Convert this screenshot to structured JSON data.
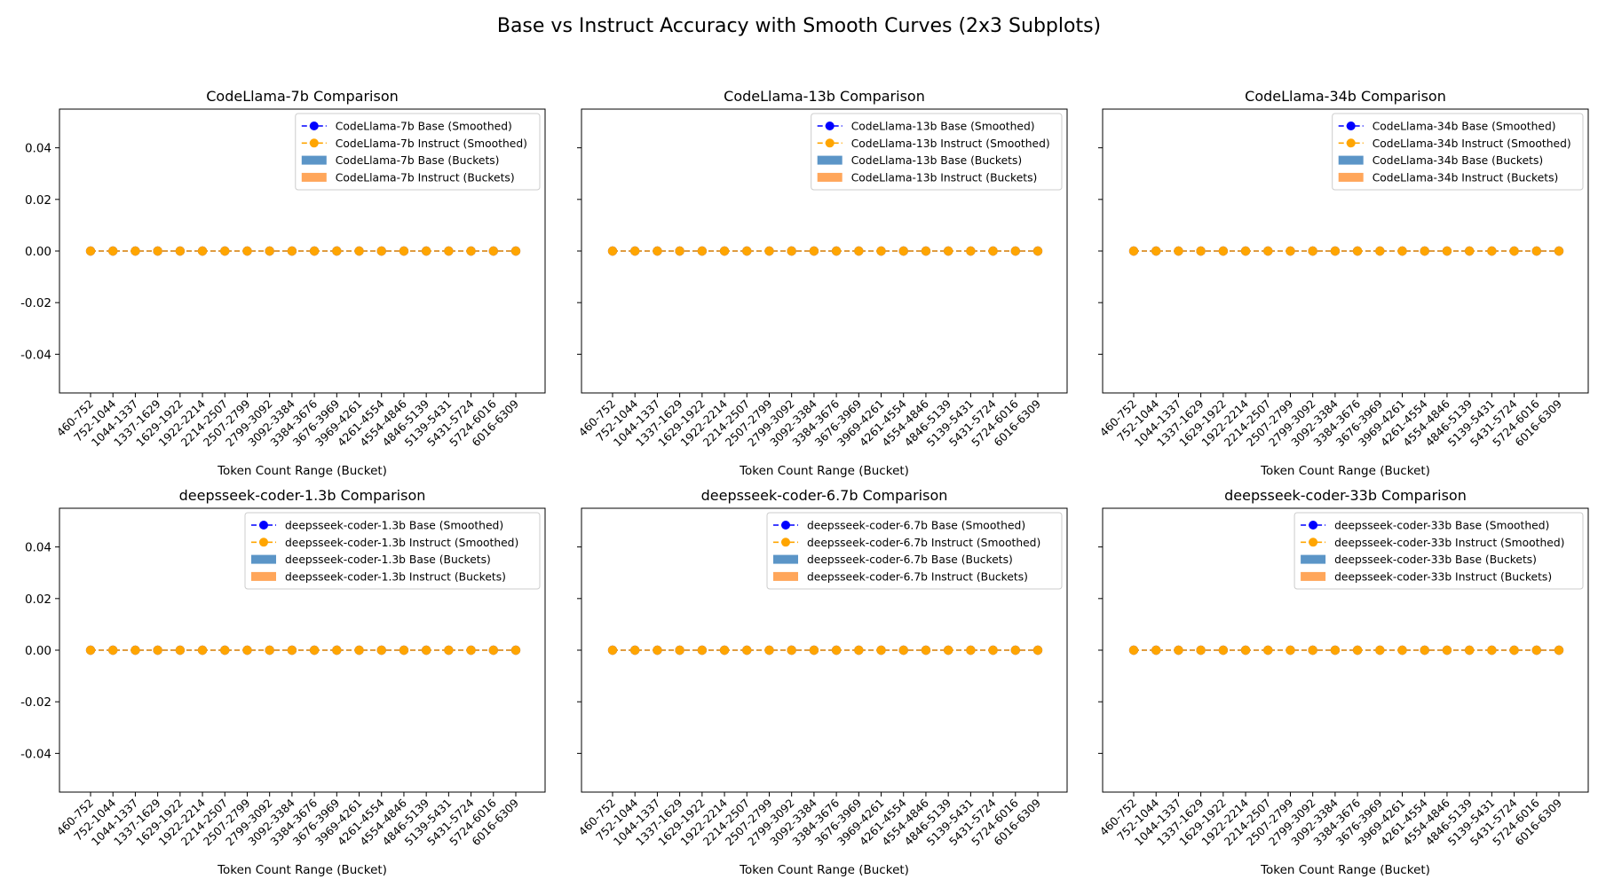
{
  "figure": {
    "title": "Base vs Instruct Accuracy with Smooth Curves (2x3 Subplots)"
  },
  "colors": {
    "base_line": "#0000ff",
    "instruct_line": "#ffa500",
    "base_bar": "#5b95c7",
    "instruct_bar": "#ffa65a"
  },
  "chart_data": [
    {
      "type": "line",
      "title": "CodeLlama-7b Comparison",
      "xlabel": "Token Count Range (Bucket)",
      "ylabel": "",
      "ylim": [
        -0.055,
        0.055
      ],
      "yticks": [
        "0.04",
        "0.02",
        "0.00",
        "-0.02",
        "-0.04"
      ],
      "ytick_values": [
        0.04,
        0.02,
        0.0,
        -0.02,
        -0.04
      ],
      "categories": [
        "460-752",
        "752-1044",
        "1044-1337",
        "1337-1629",
        "1629-1922",
        "1922-2214",
        "2214-2507",
        "2507-2799",
        "2799-3092",
        "3092-3384",
        "3384-3676",
        "3676-3969",
        "3969-4261",
        "4261-4554",
        "4554-4846",
        "4846-5139",
        "5139-5431",
        "5431-5724",
        "5724-6016",
        "6016-6309"
      ],
      "series": [
        {
          "name": "CodeLlama-7b Base (Smoothed)",
          "kind": "line",
          "values": [
            0,
            0,
            0,
            0,
            0,
            0,
            0,
            0,
            0,
            0,
            0,
            0,
            0,
            0,
            0,
            0,
            0,
            0,
            0,
            0
          ]
        },
        {
          "name": "CodeLlama-7b Instruct (Smoothed)",
          "kind": "line",
          "values": [
            0,
            0,
            0,
            0,
            0,
            0,
            0,
            0,
            0,
            0,
            0,
            0,
            0,
            0,
            0,
            0,
            0,
            0,
            0,
            0
          ]
        },
        {
          "name": "CodeLlama-7b Base (Buckets)",
          "kind": "bar",
          "values": [
            0,
            0,
            0,
            0,
            0,
            0,
            0,
            0,
            0,
            0,
            0,
            0,
            0,
            0,
            0,
            0,
            0,
            0,
            0,
            0
          ]
        },
        {
          "name": "CodeLlama-7b Instruct (Buckets)",
          "kind": "bar",
          "values": [
            0,
            0,
            0,
            0,
            0,
            0,
            0,
            0,
            0,
            0,
            0,
            0,
            0,
            0,
            0,
            0,
            0,
            0,
            0,
            0
          ]
        }
      ],
      "legend": "top-right"
    },
    {
      "type": "line",
      "title": "CodeLlama-13b Comparison",
      "xlabel": "Token Count Range (Bucket)",
      "ylabel": "",
      "ylim": [
        -0.055,
        0.055
      ],
      "yticks": [],
      "ytick_values": [
        0.04,
        0.02,
        0.0,
        -0.02,
        -0.04
      ],
      "categories": [
        "460-752",
        "752-1044",
        "1044-1337",
        "1337-1629",
        "1629-1922",
        "1922-2214",
        "2214-2507",
        "2507-2799",
        "2799-3092",
        "3092-3384",
        "3384-3676",
        "3676-3969",
        "3969-4261",
        "4261-4554",
        "4554-4846",
        "4846-5139",
        "5139-5431",
        "5431-5724",
        "5724-6016",
        "6016-6309"
      ],
      "series": [
        {
          "name": "CodeLlama-13b Base (Smoothed)",
          "kind": "line",
          "values": [
            0,
            0,
            0,
            0,
            0,
            0,
            0,
            0,
            0,
            0,
            0,
            0,
            0,
            0,
            0,
            0,
            0,
            0,
            0,
            0
          ]
        },
        {
          "name": "CodeLlama-13b Instruct (Smoothed)",
          "kind": "line",
          "values": [
            0,
            0,
            0,
            0,
            0,
            0,
            0,
            0,
            0,
            0,
            0,
            0,
            0,
            0,
            0,
            0,
            0,
            0,
            0,
            0
          ]
        },
        {
          "name": "CodeLlama-13b Base (Buckets)",
          "kind": "bar",
          "values": [
            0,
            0,
            0,
            0,
            0,
            0,
            0,
            0,
            0,
            0,
            0,
            0,
            0,
            0,
            0,
            0,
            0,
            0,
            0,
            0
          ]
        },
        {
          "name": "CodeLlama-13b Instruct (Buckets)",
          "kind": "bar",
          "values": [
            0,
            0,
            0,
            0,
            0,
            0,
            0,
            0,
            0,
            0,
            0,
            0,
            0,
            0,
            0,
            0,
            0,
            0,
            0,
            0
          ]
        }
      ],
      "legend": "top-right"
    },
    {
      "type": "line",
      "title": "CodeLlama-34b Comparison",
      "xlabel": "Token Count Range (Bucket)",
      "ylabel": "",
      "ylim": [
        -0.055,
        0.055
      ],
      "yticks": [],
      "ytick_values": [
        0.04,
        0.02,
        0.0,
        -0.02,
        -0.04
      ],
      "categories": [
        "460-752",
        "752-1044",
        "1044-1337",
        "1337-1629",
        "1629-1922",
        "1922-2214",
        "2214-2507",
        "2507-2799",
        "2799-3092",
        "3092-3384",
        "3384-3676",
        "3676-3969",
        "3969-4261",
        "4261-4554",
        "4554-4846",
        "4846-5139",
        "5139-5431",
        "5431-5724",
        "5724-6016",
        "6016-6309"
      ],
      "series": [
        {
          "name": "CodeLlama-34b Base (Smoothed)",
          "kind": "line",
          "values": [
            0,
            0,
            0,
            0,
            0,
            0,
            0,
            0,
            0,
            0,
            0,
            0,
            0,
            0,
            0,
            0,
            0,
            0,
            0,
            0
          ]
        },
        {
          "name": "CodeLlama-34b Instruct (Smoothed)",
          "kind": "line",
          "values": [
            0,
            0,
            0,
            0,
            0,
            0,
            0,
            0,
            0,
            0,
            0,
            0,
            0,
            0,
            0,
            0,
            0,
            0,
            0,
            0
          ]
        },
        {
          "name": "CodeLlama-34b Base (Buckets)",
          "kind": "bar",
          "values": [
            0,
            0,
            0,
            0,
            0,
            0,
            0,
            0,
            0,
            0,
            0,
            0,
            0,
            0,
            0,
            0,
            0,
            0,
            0,
            0
          ]
        },
        {
          "name": "CodeLlama-34b Instruct (Buckets)",
          "kind": "bar",
          "values": [
            0,
            0,
            0,
            0,
            0,
            0,
            0,
            0,
            0,
            0,
            0,
            0,
            0,
            0,
            0,
            0,
            0,
            0,
            0,
            0
          ]
        }
      ],
      "legend": "top-right"
    },
    {
      "type": "line",
      "title": "deepsseek-coder-1.3b Comparison",
      "xlabel": "Token Count Range (Bucket)",
      "ylabel": "",
      "ylim": [
        -0.055,
        0.055
      ],
      "yticks": [
        "0.04",
        "0.02",
        "0.00",
        "-0.02",
        "-0.04"
      ],
      "ytick_values": [
        0.04,
        0.02,
        0.0,
        -0.02,
        -0.04
      ],
      "categories": [
        "460-752",
        "752-1044",
        "1044-1337",
        "1337-1629",
        "1629-1922",
        "1922-2214",
        "2214-2507",
        "2507-2799",
        "2799-3092",
        "3092-3384",
        "3384-3676",
        "3676-3969",
        "3969-4261",
        "4261-4554",
        "4554-4846",
        "4846-5139",
        "5139-5431",
        "5431-5724",
        "5724-6016",
        "6016-6309"
      ],
      "series": [
        {
          "name": "deepsseek-coder-1.3b Base (Smoothed)",
          "kind": "line",
          "values": [
            0,
            0,
            0,
            0,
            0,
            0,
            0,
            0,
            0,
            0,
            0,
            0,
            0,
            0,
            0,
            0,
            0,
            0,
            0,
            0
          ]
        },
        {
          "name": "deepsseek-coder-1.3b Instruct (Smoothed)",
          "kind": "line",
          "values": [
            0,
            0,
            0,
            0,
            0,
            0,
            0,
            0,
            0,
            0,
            0,
            0,
            0,
            0,
            0,
            0,
            0,
            0,
            0,
            0
          ]
        },
        {
          "name": "deepsseek-coder-1.3b Base (Buckets)",
          "kind": "bar",
          "values": [
            0,
            0,
            0,
            0,
            0,
            0,
            0,
            0,
            0,
            0,
            0,
            0,
            0,
            0,
            0,
            0,
            0,
            0,
            0,
            0
          ]
        },
        {
          "name": "deepsseek-coder-1.3b Instruct (Buckets)",
          "kind": "bar",
          "values": [
            0,
            0,
            0,
            0,
            0,
            0,
            0,
            0,
            0,
            0,
            0,
            0,
            0,
            0,
            0,
            0,
            0,
            0,
            0,
            0
          ]
        }
      ],
      "legend": "top-right"
    },
    {
      "type": "line",
      "title": "deepsseek-coder-6.7b Comparison",
      "xlabel": "Token Count Range (Bucket)",
      "ylabel": "",
      "ylim": [
        -0.055,
        0.055
      ],
      "yticks": [],
      "ytick_values": [
        0.04,
        0.02,
        0.0,
        -0.02,
        -0.04
      ],
      "categories": [
        "460-752",
        "752-1044",
        "1044-1337",
        "1337-1629",
        "1629-1922",
        "1922-2214",
        "2214-2507",
        "2507-2799",
        "2799-3092",
        "3092-3384",
        "3384-3676",
        "3676-3969",
        "3969-4261",
        "4261-4554",
        "4554-4846",
        "4846-5139",
        "5139-5431",
        "5431-5724",
        "5724-6016",
        "6016-6309"
      ],
      "series": [
        {
          "name": "deepsseek-coder-6.7b Base (Smoothed)",
          "kind": "line",
          "values": [
            0,
            0,
            0,
            0,
            0,
            0,
            0,
            0,
            0,
            0,
            0,
            0,
            0,
            0,
            0,
            0,
            0,
            0,
            0,
            0
          ]
        },
        {
          "name": "deepsseek-coder-6.7b Instruct (Smoothed)",
          "kind": "line",
          "values": [
            0,
            0,
            0,
            0,
            0,
            0,
            0,
            0,
            0,
            0,
            0,
            0,
            0,
            0,
            0,
            0,
            0,
            0,
            0,
            0
          ]
        },
        {
          "name": "deepsseek-coder-6.7b Base (Buckets)",
          "kind": "bar",
          "values": [
            0,
            0,
            0,
            0,
            0,
            0,
            0,
            0,
            0,
            0,
            0,
            0,
            0,
            0,
            0,
            0,
            0,
            0,
            0,
            0
          ]
        },
        {
          "name": "deepsseek-coder-6.7b Instruct (Buckets)",
          "kind": "bar",
          "values": [
            0,
            0,
            0,
            0,
            0,
            0,
            0,
            0,
            0,
            0,
            0,
            0,
            0,
            0,
            0,
            0,
            0,
            0,
            0,
            0
          ]
        }
      ],
      "legend": "top-right"
    },
    {
      "type": "line",
      "title": "deepsseek-coder-33b Comparison",
      "xlabel": "Token Count Range (Bucket)",
      "ylabel": "",
      "ylim": [
        -0.055,
        0.055
      ],
      "yticks": [],
      "ytick_values": [
        0.04,
        0.02,
        0.0,
        -0.02,
        -0.04
      ],
      "categories": [
        "460-752",
        "752-1044",
        "1044-1337",
        "1337-1629",
        "1629-1922",
        "1922-2214",
        "2214-2507",
        "2507-2799",
        "2799-3092",
        "3092-3384",
        "3384-3676",
        "3676-3969",
        "3969-4261",
        "4261-4554",
        "4554-4846",
        "4846-5139",
        "5139-5431",
        "5431-5724",
        "5724-6016",
        "6016-6309"
      ],
      "series": [
        {
          "name": "deepsseek-coder-33b Base (Smoothed)",
          "kind": "line",
          "values": [
            0,
            0,
            0,
            0,
            0,
            0,
            0,
            0,
            0,
            0,
            0,
            0,
            0,
            0,
            0,
            0,
            0,
            0,
            0,
            0
          ]
        },
        {
          "name": "deepsseek-coder-33b Instruct (Smoothed)",
          "kind": "line",
          "values": [
            0,
            0,
            0,
            0,
            0,
            0,
            0,
            0,
            0,
            0,
            0,
            0,
            0,
            0,
            0,
            0,
            0,
            0,
            0,
            0
          ]
        },
        {
          "name": "deepsseek-coder-33b Base (Buckets)",
          "kind": "bar",
          "values": [
            0,
            0,
            0,
            0,
            0,
            0,
            0,
            0,
            0,
            0,
            0,
            0,
            0,
            0,
            0,
            0,
            0,
            0,
            0,
            0
          ]
        },
        {
          "name": "deepsseek-coder-33b Instruct (Buckets)",
          "kind": "bar",
          "values": [
            0,
            0,
            0,
            0,
            0,
            0,
            0,
            0,
            0,
            0,
            0,
            0,
            0,
            0,
            0,
            0,
            0,
            0,
            0,
            0
          ]
        }
      ],
      "legend": "top-right"
    }
  ]
}
